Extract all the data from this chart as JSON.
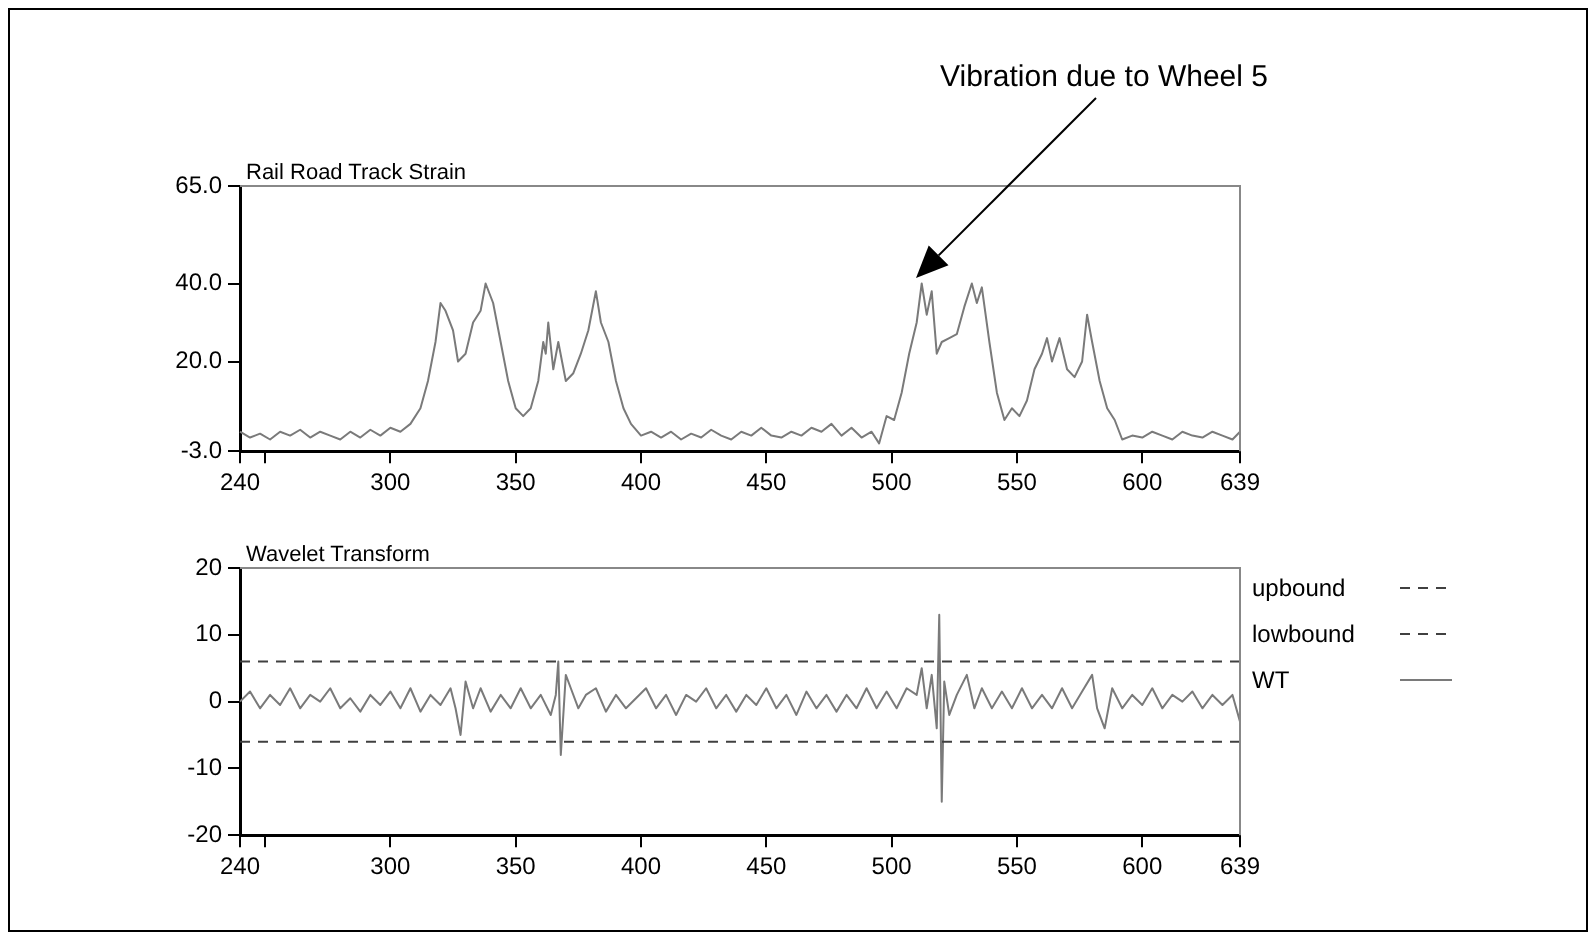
{
  "chart_data": [
    {
      "type": "line",
      "title": "Rail Road Track Strain",
      "color": "#7a7a7a",
      "marker": "none",
      "grid": false,
      "legend": false,
      "x": [
        240,
        244,
        248,
        252,
        256,
        260,
        264,
        268,
        272,
        276,
        280,
        284,
        288,
        292,
        296,
        300,
        304,
        308,
        312,
        315,
        318,
        320,
        322,
        325,
        327,
        330,
        333,
        336,
        338,
        341,
        344,
        347,
        350,
        353,
        356,
        359,
        361,
        362,
        363,
        365,
        367,
        370,
        373,
        376,
        379,
        382,
        384,
        387,
        390,
        393,
        396,
        400,
        404,
        408,
        412,
        416,
        420,
        424,
        428,
        432,
        436,
        440,
        444,
        448,
        452,
        456,
        460,
        464,
        468,
        472,
        476,
        480,
        484,
        488,
        492,
        495,
        498,
        501,
        504,
        507,
        510,
        512,
        514,
        516,
        518,
        520,
        523,
        526,
        529,
        532,
        534,
        536,
        539,
        542,
        545,
        548,
        551,
        554,
        557,
        560,
        562,
        564,
        567,
        570,
        573,
        576,
        578,
        580,
        583,
        586,
        589,
        592,
        596,
        600,
        604,
        608,
        612,
        616,
        620,
        624,
        628,
        632,
        636,
        639
      ],
      "values": [
        2,
        0.5,
        1.5,
        0,
        2,
        1,
        2.5,
        0.5,
        2,
        1,
        0,
        2,
        0.5,
        2.5,
        1,
        3,
        2,
        4,
        8,
        15,
        25,
        35,
        33,
        28,
        20,
        22,
        30,
        33,
        40,
        35,
        25,
        15,
        8,
        6,
        8,
        15,
        25,
        22,
        30,
        18,
        25,
        15,
        17,
        22,
        28,
        38,
        30,
        25,
        15,
        8,
        4,
        1,
        2,
        0.5,
        2,
        0,
        1.5,
        0.5,
        2.5,
        1,
        0,
        2,
        1,
        3,
        1,
        0.5,
        2,
        1,
        3,
        2,
        4,
        1,
        3,
        0.5,
        2,
        -1,
        6,
        5,
        12,
        22,
        30,
        40,
        32,
        38,
        22,
        25,
        26,
        27,
        34,
        40,
        35,
        39,
        25,
        12,
        5,
        8,
        6,
        10,
        18,
        22,
        26,
        20,
        26,
        18,
        16,
        20,
        32,
        25,
        15,
        8,
        5,
        0,
        1,
        0.5,
        2,
        1,
        0,
        2,
        1,
        0.5,
        2,
        1,
        0,
        2
      ],
      "xlim": [
        240,
        639
      ],
      "xticks": [
        240,
        {
          "value": 250,
          "label": null
        },
        300,
        350,
        400,
        450,
        500,
        550,
        600,
        639
      ],
      "ylim": [
        -3,
        65
      ],
      "yticks": [
        {
          "value": -3,
          "label": "-3.0"
        },
        {
          "value": 20,
          "label": "20.0"
        },
        {
          "value": 40,
          "label": "40.0"
        },
        {
          "value": 65,
          "label": "65.0"
        }
      ],
      "annotations": [
        "Vibration due to Wheel 5"
      ]
    },
    {
      "type": "line",
      "title": "Wavelet Transform",
      "marker": "none",
      "grid": false,
      "legend": "right",
      "x": [
        240,
        244,
        248,
        252,
        256,
        260,
        264,
        268,
        272,
        276,
        280,
        284,
        288,
        292,
        296,
        300,
        304,
        308,
        312,
        316,
        320,
        324,
        326,
        328,
        330,
        333,
        336,
        340,
        344,
        348,
        352,
        356,
        360,
        364,
        366,
        367,
        368,
        370,
        372,
        375,
        378,
        382,
        386,
        390,
        394,
        398,
        402,
        406,
        410,
        414,
        418,
        422,
        426,
        430,
        434,
        438,
        442,
        446,
        450,
        454,
        458,
        462,
        466,
        470,
        474,
        478,
        482,
        486,
        490,
        494,
        498,
        502,
        506,
        510,
        512,
        514,
        516,
        518,
        519,
        520,
        521,
        523,
        526,
        530,
        533,
        536,
        540,
        544,
        548,
        552,
        556,
        560,
        564,
        568,
        572,
        576,
        580,
        582,
        585,
        588,
        592,
        596,
        600,
        604,
        608,
        612,
        616,
        620,
        624,
        628,
        632,
        636,
        639
      ],
      "series": [
        {
          "name": "WT",
          "color": "#7a7a7a",
          "line_style": "solid",
          "values": [
            0,
            1.5,
            -1,
            1,
            -0.5,
            2,
            -1,
            1,
            0,
            2,
            -1,
            0.5,
            -1.5,
            1,
            -0.5,
            1.5,
            -1,
            2,
            -1.5,
            1,
            -0.5,
            2,
            -1,
            -5,
            3,
            -1,
            2,
            -1.5,
            1,
            -1,
            2,
            -1,
            1,
            -2,
            1,
            6,
            -8,
            4,
            2,
            -1,
            1,
            2,
            -1.5,
            1,
            -1,
            0.5,
            2,
            -1,
            1,
            -2,
            1,
            0,
            2,
            -1,
            1,
            -1.5,
            1,
            -0.5,
            2,
            -1,
            1,
            -2,
            1.5,
            -1,
            1,
            -1.5,
            1,
            -1,
            2,
            -1,
            1.5,
            -1,
            2,
            1,
            5,
            -1,
            4,
            -4,
            13,
            -15,
            3,
            -2,
            1,
            4,
            -1,
            2,
            -1,
            1.5,
            -1,
            2,
            -1,
            1,
            -1,
            2,
            -1,
            1.5,
            4,
            -1,
            -4,
            2,
            -1,
            1,
            -0.5,
            2,
            -1,
            1,
            0,
            1.5,
            -1,
            1,
            -0.5,
            1,
            -3
          ]
        }
      ],
      "xlim": [
        240,
        639
      ],
      "xticks": [
        240,
        {
          "value": 250,
          "label": null
        },
        300,
        350,
        400,
        450,
        500,
        550,
        600,
        639
      ],
      "ylim": [
        -20,
        20
      ],
      "yticks": [
        -20,
        -10,
        0,
        10,
        20
      ],
      "ref_lines": [
        {
          "axis": "y",
          "value": 6,
          "label": "upbound",
          "color": "#404040",
          "line_style": "dashed"
        },
        {
          "axis": "y",
          "value": -6,
          "label": "lowbound",
          "color": "#404040",
          "line_style": "dashed"
        }
      ]
    }
  ]
}
